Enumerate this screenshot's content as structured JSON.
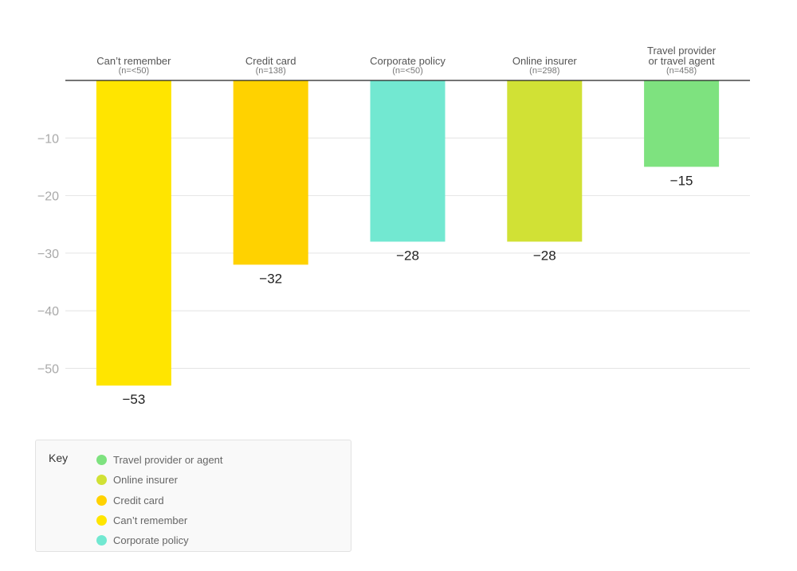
{
  "chart_data": {
    "type": "bar",
    "categories": [
      {
        "label_lines": [
          "Can’t remember"
        ],
        "n": "(n=<50)"
      },
      {
        "label_lines": [
          "Credit card"
        ],
        "n": "(n=138)"
      },
      {
        "label_lines": [
          "Corporate policy"
        ],
        "n": "(n=<50)"
      },
      {
        "label_lines": [
          "Online insurer"
        ],
        "n": "(n=298)"
      },
      {
        "label_lines": [
          "Travel provider",
          "or travel agent"
        ],
        "n": "(n=458)"
      }
    ],
    "values": [
      -53,
      -32,
      -28,
      -28,
      -15
    ],
    "value_labels": [
      "−53",
      "−32",
      "−28",
      "−28",
      "−15"
    ],
    "colors": [
      "#FFE500",
      "#FFD200",
      "#72E8D1",
      "#D1E135",
      "#7EE27F"
    ],
    "ylim": [
      -55,
      0
    ],
    "yticks": [
      -10,
      -20,
      -30,
      -40,
      -50
    ],
    "ytick_labels": [
      "−10",
      "−20",
      "−30",
      "−40",
      "−50"
    ],
    "grid": true,
    "legend": {
      "title": "Key",
      "placement": "bottom-left",
      "items": [
        {
          "label": "Travel provider or agent",
          "color": "#7EE27F"
        },
        {
          "label": "Online insurer",
          "color": "#D1E135"
        },
        {
          "label": "Credit card",
          "color": "#FFD200"
        },
        {
          "label": "Can’t remember",
          "color": "#FFE500"
        },
        {
          "label": "Corporate policy",
          "color": "#72E8D1"
        }
      ]
    }
  }
}
